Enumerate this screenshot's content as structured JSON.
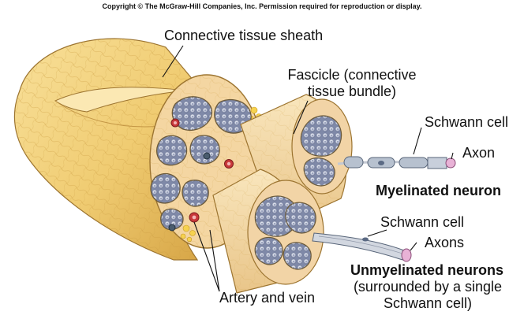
{
  "copyright": "Copyright © The McGraw-Hill Companies, Inc. Permission required for reproduction or display.",
  "labels": {
    "sheath": "Connective tissue sheath",
    "fascicle_line1": "Fascicle (connective",
    "fascicle_line2": "tissue bundle)",
    "schwann_cell_top": "Schwann cell",
    "axon": "Axon",
    "myelinated": "Myelinated neuron",
    "schwann_cell_bottom": "Schwann cell",
    "axons": "Axons",
    "unmyelinated": "Unmyelinated neurons",
    "unmyelinated_note1": "(surrounded by a single",
    "unmyelinated_note2": "Schwann cell)",
    "artery_vein": "Artery and vein"
  },
  "colors": {
    "sheath": "#f2d27a",
    "sheath_dark": "#d9a845",
    "fascicle": "#f6deac",
    "fascicle_cap": "#f4cfa0",
    "fiber": "#8f97b0",
    "fiber_core": "#e7eaf2",
    "vessel": "#c8383a",
    "axon": "#e8b2d6",
    "schwann": "#b7c1cf"
  }
}
